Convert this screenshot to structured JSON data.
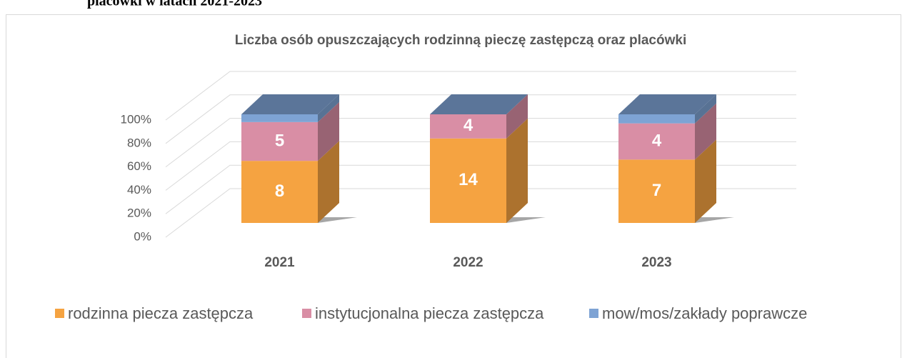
{
  "heading": "placówki w latach 2021-2023",
  "chart_data": {
    "type": "bar3d",
    "stacking": "percent",
    "title": "Liczba osób opuszczających rodzinną pieczę zastępczą oraz placówki",
    "categories": [
      "2021",
      "2022",
      "2023"
    ],
    "series": [
      {
        "name": "rodzinna piecza zastępcza",
        "color": "#f5a341",
        "values": [
          8,
          14,
          7
        ]
      },
      {
        "name": "instytucjonalna piecza zastępcza",
        "color": "#d98ea5",
        "values": [
          5,
          4,
          4
        ]
      },
      {
        "name": "mow/mos/zakłady poprawcze",
        "color": "#7ea3d4",
        "values": [
          1,
          0,
          1
        ]
      }
    ],
    "ylim": [
      0,
      100
    ],
    "yticks": [
      {
        "value": 0,
        "label": "0%"
      },
      {
        "value": 20,
        "label": "20%"
      },
      {
        "value": 40,
        "label": "40%"
      },
      {
        "value": 60,
        "label": "60%"
      },
      {
        "value": 80,
        "label": "80%"
      },
      {
        "value": 100,
        "label": "100%"
      }
    ],
    "grid": true,
    "legend": "bottom"
  }
}
